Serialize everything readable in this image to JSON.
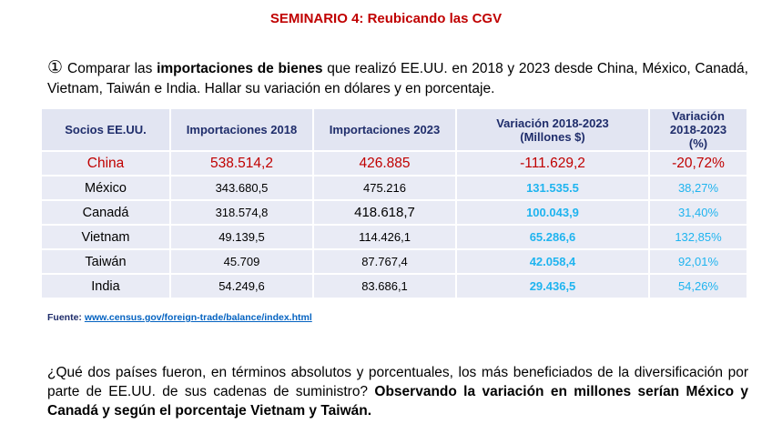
{
  "title": "SEMINARIO 4: Reubicando las CGV",
  "intro": {
    "number": "①",
    "pre": " Comparar las ",
    "bold": "importaciones de bienes",
    "post": " que realizó EE.UU. en 2018 y 2023 desde China, México, Canadá, Vietnam, Taiwán e India. Hallar su variación en dólares y en porcentaje."
  },
  "table": {
    "headers": [
      "Socios EE.UU.",
      "Importaciones 2018",
      "Importaciones 2023",
      "Variación 2018-2023 (Millones $)",
      "Variación 2018-2023 (%)"
    ],
    "rows": [
      [
        "China",
        "538.514,2",
        "426.885",
        "-111.629,2",
        "-20,72%"
      ],
      [
        "México",
        "343.680,5",
        "475.216",
        "131.535.5",
        "38,27%"
      ],
      [
        "Canadá",
        "318.574,8",
        "418.618,7",
        "100.043,9",
        "31,40%"
      ],
      [
        "Vietnam",
        "49.139,5",
        "114.426,1",
        "65.286,6",
        "132,85%"
      ],
      [
        "Taiwán",
        "45.709",
        "87.767,4",
        "42.058,4",
        "92,01%"
      ],
      [
        "India",
        "54.249,6",
        "83.686,1",
        "29.436,5",
        "54,26%"
      ]
    ]
  },
  "source": {
    "label": "Fuente: ",
    "link": "www.census.gov/foreign-trade/balance/index.html"
  },
  "question": {
    "text": " ¿Qué dos países fueron, en términos absolutos y porcentuales, los más beneficiados de la diversificación por parte de EE.UU. de sus cadenas de suministro? ",
    "answer": " Observando la variación en millones serían México y Canadá y según el porcentaje Vietnam y Taiwán."
  },
  "colors": {
    "title": "#c00000",
    "header": "#1f2d6b",
    "accent": "#1fb4ef"
  }
}
